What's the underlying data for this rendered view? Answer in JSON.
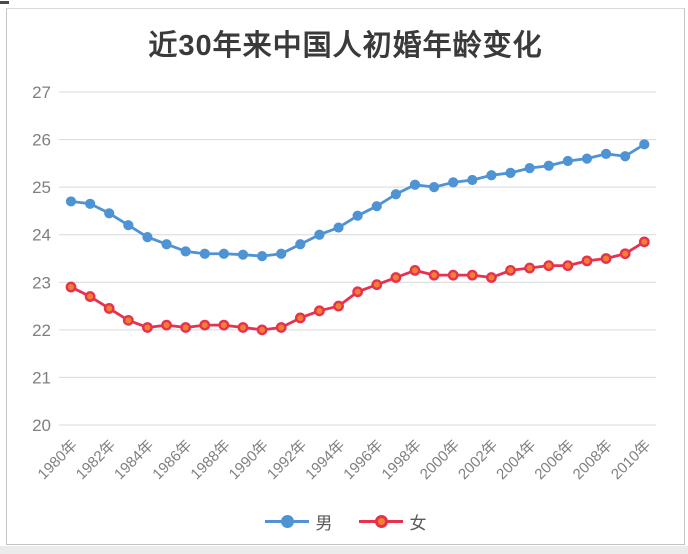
{
  "colors": {
    "male_line": "#4E93D4",
    "female_line": "#E8304F",
    "female_marker_fill": "#F0822D",
    "grid": "#D9D9D9",
    "axis_text": "#7F7F7F",
    "title_text": "#3A3A3A",
    "legend_text": "#595959",
    "frame_border": "#C4C4C4"
  },
  "chart_data": {
    "type": "line",
    "title": "近30年来中国人初婚年龄变化",
    "ylim": [
      20,
      27
    ],
    "y_ticks": [
      27,
      26,
      25,
      24,
      23,
      22,
      21,
      20
    ],
    "grid": true,
    "legend_position": "bottom",
    "x": [
      1980,
      1981,
      1982,
      1983,
      1984,
      1985,
      1986,
      1987,
      1988,
      1989,
      1990,
      1991,
      1992,
      1993,
      1994,
      1995,
      1996,
      1997,
      1998,
      1999,
      2000,
      2001,
      2002,
      2003,
      2004,
      2005,
      2006,
      2007,
      2008,
      2009,
      2010
    ],
    "x_ticks": [
      {
        "year": 1980,
        "label": "1980年"
      },
      {
        "year": 1982,
        "label": "1982年"
      },
      {
        "year": 1984,
        "label": "1984年"
      },
      {
        "year": 1986,
        "label": "1986年"
      },
      {
        "year": 1988,
        "label": "1988年"
      },
      {
        "year": 1990,
        "label": "1990年"
      },
      {
        "year": 1992,
        "label": "1992年"
      },
      {
        "year": 1994,
        "label": "1994年"
      },
      {
        "year": 1996,
        "label": "1996年"
      },
      {
        "year": 1998,
        "label": "1998年"
      },
      {
        "year": 2000,
        "label": "2000年"
      },
      {
        "year": 2002,
        "label": "2002年"
      },
      {
        "year": 2004,
        "label": "2004年"
      },
      {
        "year": 2006,
        "label": "2006年"
      },
      {
        "year": 2008,
        "label": "2008年"
      },
      {
        "year": 2010,
        "label": "2010年"
      }
    ],
    "series": [
      {
        "name": "男",
        "color": "#4E93D4",
        "values": [
          24.7,
          24.65,
          24.45,
          24.2,
          23.95,
          23.8,
          23.65,
          23.6,
          23.6,
          23.58,
          23.55,
          23.6,
          23.8,
          24.0,
          24.15,
          24.4,
          24.6,
          24.85,
          25.05,
          25.0,
          25.1,
          25.15,
          25.25,
          25.3,
          25.4,
          25.45,
          25.55,
          25.6,
          25.7,
          25.65,
          25.9
        ]
      },
      {
        "name": "女",
        "color": "#E8304F",
        "marker_fill": "#F0822D",
        "values": [
          22.9,
          22.7,
          22.45,
          22.2,
          22.05,
          22.1,
          22.05,
          22.1,
          22.1,
          22.05,
          22.0,
          22.05,
          22.25,
          22.4,
          22.5,
          22.8,
          22.95,
          23.1,
          23.25,
          23.15,
          23.15,
          23.15,
          23.1,
          23.25,
          23.3,
          23.35,
          23.35,
          23.45,
          23.5,
          23.6,
          23.85
        ]
      }
    ]
  }
}
